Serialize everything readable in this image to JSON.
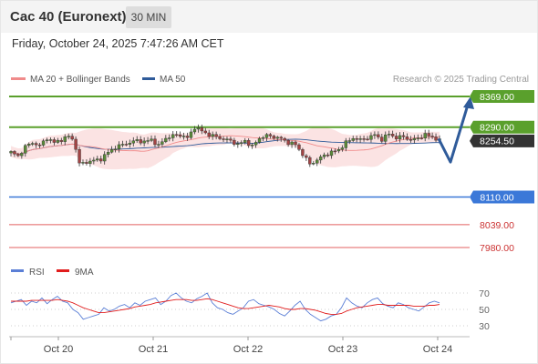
{
  "header": {
    "title": "Cac 40 (Euronext)",
    "timeframe": "30 MIN"
  },
  "date_text": "Friday, October 24, 2025 7:47:26 AM CET",
  "credit": "Research © 2025 Trading Central",
  "legend": [
    {
      "label": "MA 20 + Bollinger Bands",
      "color": "#f08b8b"
    },
    {
      "label": "MA 50",
      "color": "#2f5b9a"
    }
  ],
  "rsi_legend": [
    {
      "label": "RSI",
      "color": "#5b7fd6"
    },
    {
      "label": "9MA",
      "color": "#e11d1d"
    }
  ],
  "colors": {
    "resistance": "#5aa02c",
    "pivot": "#3b78d8",
    "support": "#e36060",
    "price": "#333333",
    "forecast_arrow": "#2f5b9a",
    "candle_up": "#5a8a3a",
    "candle_down": "#a34444"
  },
  "chart_data": [
    {
      "type": "candlestick",
      "title": "",
      "x_ticks": [
        "Oct 20",
        "Oct 21",
        "Oct 22",
        "Oct 23",
        "Oct 24"
      ],
      "ylim": [
        7950,
        8400
      ],
      "levels": [
        {
          "value": 8369.0,
          "label": "8369.00",
          "kind": "resistance"
        },
        {
          "value": 8290.0,
          "label": "8290.00",
          "kind": "resistance"
        },
        {
          "value": 8254.5,
          "label": "8254.50",
          "kind": "last_price"
        },
        {
          "value": 8110.0,
          "label": "8110.00",
          "kind": "pivot"
        },
        {
          "value": 8039.0,
          "label": "8039.00",
          "kind": "support"
        },
        {
          "value": 7980.0,
          "label": "7980.00",
          "kind": "support"
        }
      ],
      "close_path": [
        [
          0,
          8225
        ],
        [
          2,
          8215
        ],
        [
          4,
          8240
        ],
        [
          6,
          8250
        ],
        [
          8,
          8242
        ],
        [
          10,
          8262
        ],
        [
          12,
          8250
        ],
        [
          14,
          8258
        ],
        [
          16,
          8266
        ],
        [
          17.5,
          8256
        ],
        [
          19,
          8195
        ],
        [
          21,
          8200
        ],
        [
          23,
          8204
        ],
        [
          25,
          8208
        ],
        [
          27,
          8225
        ],
        [
          29,
          8238
        ],
        [
          31,
          8245
        ],
        [
          33,
          8250
        ],
        [
          35,
          8256
        ],
        [
          37,
          8252
        ],
        [
          39,
          8258
        ],
        [
          41,
          8242
        ],
        [
          43,
          8262
        ],
        [
          45,
          8268
        ],
        [
          47,
          8270
        ],
        [
          49,
          8262
        ],
        [
          51,
          8290
        ],
        [
          53,
          8280
        ],
        [
          55,
          8270
        ],
        [
          57,
          8265
        ],
        [
          59,
          8260
        ],
        [
          61,
          8255
        ],
        [
          63,
          8245
        ],
        [
          65,
          8255
        ],
        [
          67,
          8240
        ],
        [
          69,
          8262
        ],
        [
          71,
          8268
        ],
        [
          73,
          8265
        ],
        [
          75,
          8260
        ],
        [
          77,
          8250
        ],
        [
          79,
          8245
        ],
        [
          81,
          8220
        ],
        [
          83,
          8195
        ],
        [
          85,
          8205
        ],
        [
          87,
          8218
        ],
        [
          89,
          8225
        ],
        [
          91,
          8232
        ],
        [
          93,
          8250
        ],
        [
          95,
          8262
        ],
        [
          97,
          8257
        ],
        [
          99,
          8262
        ],
        [
          101,
          8270
        ],
        [
          103,
          8258
        ],
        [
          105,
          8273
        ],
        [
          107,
          8262
        ],
        [
          109,
          8266
        ],
        [
          111,
          8256
        ],
        [
          113,
          8262
        ],
        [
          115,
          8270
        ],
        [
          117,
          8265
        ],
        [
          119,
          8255
        ]
      ],
      "forecast": {
        "low": 8200,
        "target": 8369
      }
    },
    {
      "type": "line",
      "series": [
        {
          "name": "RSI"
        },
        {
          "name": "9MA"
        }
      ],
      "ylim": [
        20,
        80
      ],
      "y_ticks": [
        70,
        50,
        30
      ],
      "rsi": [
        58,
        60,
        62,
        55,
        60,
        58,
        64,
        57,
        62,
        66,
        60,
        58,
        50,
        46,
        38,
        40,
        42,
        44,
        52,
        48,
        50,
        54,
        56,
        52,
        58,
        55,
        60,
        62,
        64,
        56,
        60,
        67,
        70,
        64,
        60,
        58,
        63,
        66,
        70,
        58,
        52,
        50,
        46,
        44,
        48,
        52,
        60,
        62,
        57,
        55,
        53,
        50,
        45,
        42,
        48,
        55,
        60,
        50,
        44,
        40,
        36,
        38,
        42,
        44,
        52,
        64,
        58,
        54,
        52,
        58,
        62,
        64,
        57,
        54,
        52,
        58,
        56,
        52,
        50,
        48,
        53,
        58,
        60,
        58
      ],
      "ma9": [
        60,
        60,
        60,
        60,
        61,
        61,
        61,
        61,
        61,
        62,
        61,
        60,
        58,
        55,
        52,
        50,
        48,
        46,
        46,
        47,
        48,
        49,
        50,
        51,
        53,
        54,
        55,
        56,
        58,
        59,
        60,
        61,
        62,
        62,
        62,
        61,
        61,
        62,
        63,
        62,
        60,
        58,
        56,
        54,
        52,
        51,
        51,
        52,
        53,
        54,
        55,
        54,
        53,
        51,
        50,
        50,
        51,
        51,
        50,
        49,
        47,
        45,
        44,
        44,
        45,
        48,
        50,
        52,
        53,
        54,
        55,
        56,
        56,
        55,
        55,
        55,
        55,
        55,
        54,
        54,
        54,
        55,
        55,
        56
      ]
    }
  ]
}
